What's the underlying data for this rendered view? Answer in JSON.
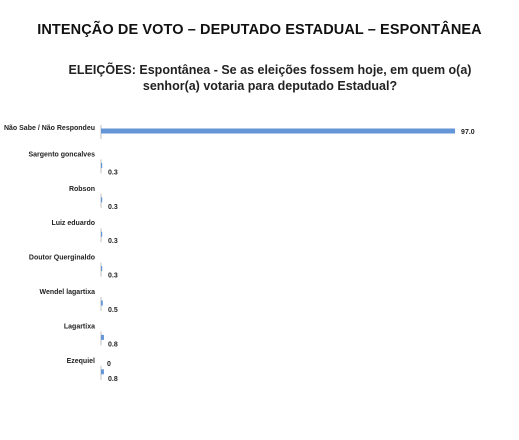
{
  "page": {
    "main_title": "INTENÇÃO DE VOTO – DEPUTADO ESTADUAL – ESPONTÂNEA"
  },
  "chart_data": {
    "type": "bar",
    "orientation": "horizontal",
    "title": "ELEIÇÕES: Espontânea - Se as eleições fossem hoje, em quem o(a) senhor(a) votaria para deputado Estadual?",
    "categories": [
      "Não Sabe / Não Respondeu",
      "Sargento goncalves",
      "Robson",
      "Luiz eduardo",
      "Doutor Querginaldo",
      "Wendel lagartixa",
      "Lagartixa",
      "Ezequiel"
    ],
    "values": [
      97.0,
      0.3,
      0.3,
      0.3,
      0.3,
      0.5,
      0.8,
      0.8
    ],
    "value_labels": [
      "97.0",
      "0.3",
      "0.3",
      "0.3",
      "0.3",
      "0.5",
      "0.8",
      "0.8"
    ],
    "extra_labels": [
      {
        "category": "Ezequiel",
        "text": "0"
      }
    ],
    "xlim": [
      0,
      100
    ],
    "grid": false,
    "bar_color": "#6495D6",
    "axis_color": "#BFBFBF"
  }
}
